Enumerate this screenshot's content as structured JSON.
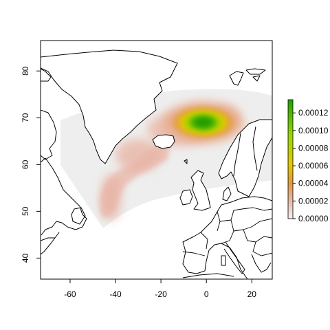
{
  "chart_data": {
    "type": "heatmap",
    "title": "",
    "xlabel": "",
    "ylabel": "",
    "xlim": [
      -73,
      29
    ],
    "ylim": [
      35.5,
      86.5
    ],
    "x_ticks": [
      -60,
      -40,
      -20,
      0,
      20
    ],
    "y_ticks": [
      40,
      50,
      60,
      70,
      80
    ],
    "x_tick_labels": [
      "-60",
      "-40",
      "-20",
      "0",
      "20"
    ],
    "y_tick_labels": [
      "40",
      "50",
      "60",
      "70",
      "80"
    ],
    "grid": false,
    "legend": {
      "placement": "right",
      "min": 0,
      "max": 0.000135,
      "ticks": [
        0,
        2e-05,
        4e-05,
        6e-05,
        8e-05,
        0.0001,
        0.00012
      ],
      "tick_labels": [
        "0.00000",
        "0.00002",
        "0.00004",
        "0.00006",
        "0.00008",
        "0.00010",
        "0.00012"
      ],
      "colors": [
        "#f2f2f2",
        "#e6b8a8",
        "#e09a40",
        "#e6c800",
        "#9ad800",
        "#22a000"
      ]
    },
    "density": {
      "domain_color": "#eeeeee",
      "peak": {
        "lon": -2,
        "lat": 69,
        "value": 0.000133
      },
      "components": [
        {
          "lon": -2,
          "lat": 69.3,
          "sx": 7,
          "sy": 2.8,
          "amp": 0.00013
        },
        {
          "lon": -12,
          "lat": 67.5,
          "sx": 14,
          "sy": 3.5,
          "amp": 2.5e-05
        },
        {
          "lon": -30,
          "lat": 62,
          "sx": 10,
          "sy": 3.5,
          "amp": 1.6e-05
        },
        {
          "lon": -42,
          "lat": 53,
          "sx": 4.5,
          "sy": 5,
          "amp": 1.6e-05
        },
        {
          "lon": 8,
          "lat": 70,
          "sx": 6,
          "sy": 2.5,
          "amp": 2e-05
        }
      ]
    }
  }
}
